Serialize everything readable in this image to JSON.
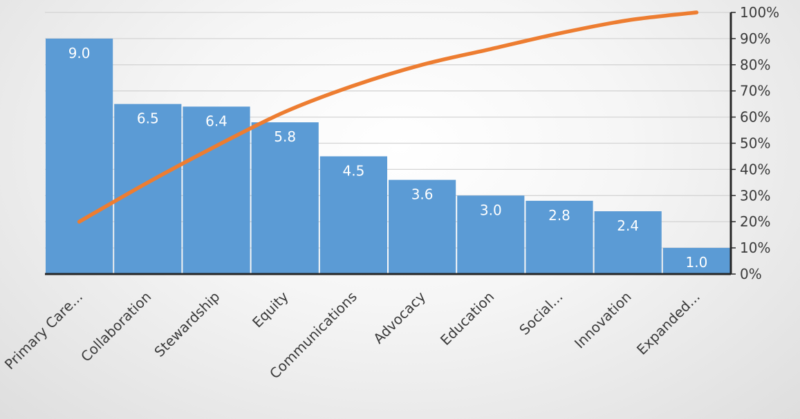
{
  "chart_data": {
    "type": "bar",
    "categories": [
      "Primary Care...",
      "Collaboration",
      "Stewardship",
      "Equity",
      "Communications",
      "Advocacy",
      "Education",
      "Social...",
      "Innovation",
      "Expanded..."
    ],
    "series": [
      {
        "type": "bar",
        "values": [
          9.0,
          6.5,
          6.4,
          5.8,
          4.5,
          3.6,
          3.0,
          2.8,
          2.4,
          1.0
        ],
        "color": "#5b9bd5"
      },
      {
        "type": "line",
        "axis": "secondary",
        "values": [
          20,
          35,
          49,
          62,
          72,
          80,
          86,
          92,
          97,
          100
        ],
        "color": "#ed7d31"
      }
    ],
    "data_labels": [
      "9.0",
      "6.5",
      "6.4",
      "5.8",
      "4.5",
      "3.6",
      "3.0",
      "2.8",
      "2.4",
      "1.0"
    ],
    "primary_ylim": [
      0,
      10
    ],
    "secondary_ylim": [
      0,
      100
    ],
    "secondary_ticks": [
      "0%",
      "10%",
      "20%",
      "30%",
      "40%",
      "50%",
      "60%",
      "70%",
      "80%",
      "90%",
      "100%"
    ],
    "title": "",
    "xlabel": "",
    "ylabel": "",
    "grid": true,
    "legend": "none",
    "colors": {
      "bar": "#5b9bd5",
      "line": "#ed7d31",
      "grid": "#d4d4d4",
      "axis": "#262626"
    }
  }
}
